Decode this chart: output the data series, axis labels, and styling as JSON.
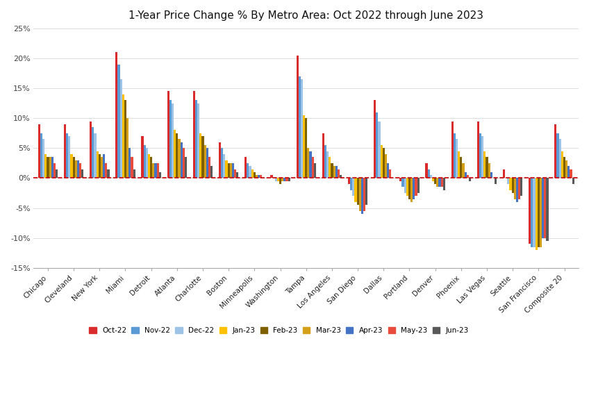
{
  "title": "1-Year Price Change % By Metro Area: Oct 2022 through June 2023",
  "categories": [
    "Chicago",
    "Cleveland",
    "New York",
    "Miami",
    "Detroit",
    "Atlanta",
    "Charlotte",
    "Boston",
    "Minneapolis",
    "Washington",
    "Tampa",
    "Los Angeles",
    "San Diego",
    "Dallas",
    "Portland",
    "Denver",
    "Phoenix",
    "Las Vegas",
    "Seattle",
    "San Francisco",
    "Composite 20"
  ],
  "series_labels": [
    "Oct-22",
    "Nov-22",
    "Dec-22",
    "Jan-23",
    "Feb-23",
    "Mar-23",
    "Apr-23",
    "May-23",
    "Jun-23"
  ],
  "series_colors": [
    "#d92b2b",
    "#5b9bd5",
    "#9dc3e6",
    "#ffc000",
    "#7f6000",
    "#d4a017",
    "#4472c4",
    "#e74c3c",
    "#595959"
  ],
  "data": {
    "Oct-22": [
      9.0,
      9.0,
      9.5,
      21.0,
      7.0,
      14.5,
      14.5,
      6.0,
      3.5,
      0.5,
      20.5,
      7.5,
      -1.0,
      13.0,
      -0.5,
      2.5,
      9.5,
      9.5,
      1.5,
      -11.0,
      9.0
    ],
    "Nov-22": [
      7.5,
      7.5,
      8.5,
      19.0,
      5.5,
      13.0,
      13.0,
      5.0,
      2.5,
      0.0,
      17.0,
      5.5,
      -2.0,
      11.0,
      -1.5,
      1.5,
      7.5,
      7.5,
      0.0,
      -11.5,
      7.5
    ],
    "Dec-22": [
      6.5,
      7.0,
      7.5,
      16.5,
      5.0,
      12.5,
      12.5,
      4.0,
      2.0,
      -0.5,
      16.5,
      4.5,
      -3.0,
      9.5,
      -2.5,
      0.5,
      6.5,
      7.0,
      -1.0,
      -11.5,
      6.5
    ],
    "Jan-23": [
      4.0,
      4.0,
      4.5,
      14.0,
      4.0,
      8.0,
      7.5,
      3.0,
      1.5,
      -0.5,
      10.5,
      3.5,
      -4.0,
      5.5,
      -3.0,
      -0.5,
      4.5,
      4.5,
      -2.0,
      -12.0,
      4.5
    ],
    "Feb-23": [
      3.5,
      3.5,
      4.0,
      13.0,
      3.5,
      7.5,
      7.0,
      2.5,
      1.0,
      -1.0,
      10.0,
      2.5,
      -4.5,
      5.0,
      -3.5,
      -1.0,
      3.5,
      3.5,
      -2.5,
      -11.5,
      3.5
    ],
    "Mar-23": [
      3.5,
      3.0,
      3.5,
      10.0,
      2.5,
      6.5,
      5.5,
      2.5,
      0.5,
      -0.5,
      5.0,
      2.0,
      -5.5,
      4.0,
      -4.0,
      -1.5,
      2.5,
      2.5,
      -3.5,
      -11.5,
      3.0
    ],
    "Apr-23": [
      3.5,
      3.0,
      4.0,
      5.0,
      2.5,
      6.0,
      5.0,
      2.5,
      0.5,
      -0.5,
      4.5,
      2.0,
      -6.0,
      2.5,
      -3.5,
      -1.5,
      1.0,
      1.0,
      -4.0,
      -10.0,
      2.0
    ],
    "May-23": [
      2.5,
      2.5,
      2.5,
      3.5,
      2.5,
      5.0,
      3.5,
      1.5,
      0.5,
      -0.5,
      3.5,
      1.5,
      -5.5,
      1.5,
      -3.0,
      -1.5,
      0.5,
      0.0,
      -3.5,
      -10.0,
      1.5
    ],
    "Jun-23": [
      1.5,
      1.5,
      1.5,
      1.5,
      1.0,
      3.5,
      2.0,
      1.0,
      0.0,
      -0.5,
      2.5,
      0.5,
      -4.5,
      0.0,
      -2.5,
      -2.0,
      -0.5,
      -1.0,
      -3.0,
      -10.5,
      -1.0
    ]
  },
  "ylim": [
    -15,
    25
  ],
  "yticks": [
    -15,
    -10,
    -5,
    0,
    5,
    10,
    15,
    20,
    25
  ],
  "ytick_labels": [
    "-15%",
    "-10%",
    "-5%",
    "0%",
    "5%",
    "10%",
    "15%",
    "20%",
    "25%"
  ]
}
